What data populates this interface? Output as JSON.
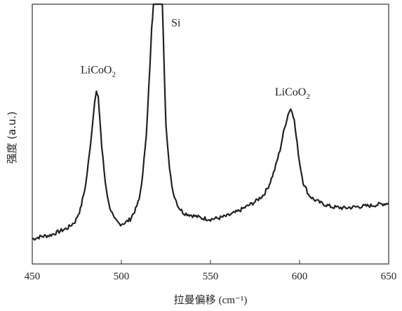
{
  "chart_data": {
    "type": "line",
    "title": "",
    "xlabel": "拉曼偏移",
    "xlabel_unit": "(cm⁻¹)",
    "ylabel": "强度  (a.u.)",
    "xlim": [
      450,
      650
    ],
    "ylim": [
      0,
      100
    ],
    "x_ticks": [
      450,
      500,
      550,
      600,
      650
    ],
    "x_tick_labels": [
      "450",
      "500",
      "550",
      "600",
      "650"
    ],
    "y_ticks_shown": false,
    "grid": false,
    "legend": "none",
    "line_color": "#222222",
    "series": [
      {
        "x": [
          450,
          455,
          460,
          465,
          470,
          474,
          477,
          480,
          482,
          484,
          485,
          486,
          487,
          488,
          489,
          491,
          493,
          496,
          499,
          502,
          505,
          508,
          510,
          512,
          514,
          516,
          517,
          518,
          519,
          520,
          521,
          522,
          523,
          524,
          525,
          527,
          529,
          532,
          535,
          540,
          545,
          550,
          555,
          560,
          565,
          570,
          575,
          580,
          583,
          586,
          589,
          591,
          593,
          594,
          595,
          596,
          597,
          598,
          600,
          602,
          605,
          608,
          612,
          618,
          625,
          632,
          640,
          645,
          650
        ],
        "y": [
          5.0,
          6.0,
          6.5,
          8.0,
          9.5,
          12.0,
          17.0,
          27.0,
          39.0,
          53.0,
          61.0,
          64.5,
          62.0,
          53.0,
          42.0,
          28.0,
          19.0,
          13.0,
          11.0,
          11.5,
          13.0,
          17.0,
          21.0,
          31.0,
          48.0,
          74.0,
          90.0,
          100.0,
          100.0,
          100.0,
          100.0,
          100.0,
          100.0,
          75.0,
          52.0,
          33.0,
          24.0,
          18.0,
          15.5,
          14.5,
          13.5,
          13.0,
          13.5,
          14.5,
          16.0,
          18.0,
          20.0,
          23.0,
          27.0,
          33.0,
          41.0,
          48.0,
          54.0,
          56.5,
          57.5,
          56.5,
          53.0,
          47.0,
          36.0,
          28.0,
          23.0,
          21.0,
          19.5,
          18.0,
          17.5,
          18.0,
          18.5,
          19.0,
          19.5
        ]
      }
    ],
    "annotations": [
      {
        "label": "LiCoO",
        "subscript": "2",
        "x": 487,
        "y": 72
      },
      {
        "label": "Si",
        "x": 528,
        "y": 91
      },
      {
        "label": "LiCoO",
        "subscript": "2",
        "x": 596,
        "y": 63
      }
    ]
  }
}
